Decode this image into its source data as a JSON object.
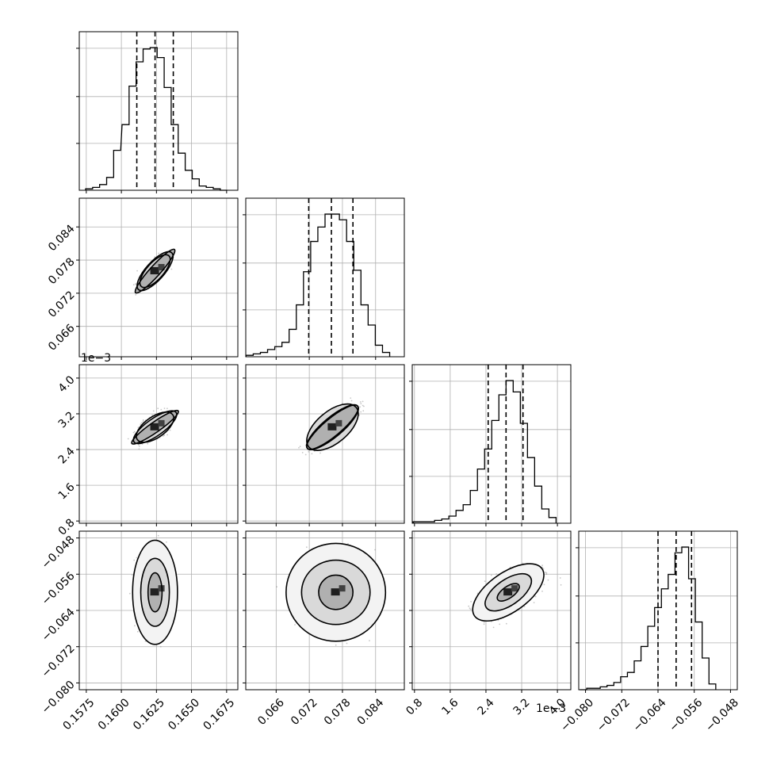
{
  "chart_data": {
    "type": "corner",
    "parameters": [
      {
        "range": [
          0.157,
          0.1683
        ],
        "ticks": [
          0.1575,
          0.16,
          0.1625,
          0.165,
          0.1675
        ],
        "tick_labels": [
          "0.1575",
          "0.1600",
          "0.1625",
          "0.1650",
          "0.1675"
        ],
        "offset": "",
        "quantiles": [
          0.1611,
          0.1624,
          0.1637
        ]
      },
      {
        "range": [
          0.0605,
          0.0892
        ],
        "ticks": [
          0.066,
          0.072,
          0.078,
          0.084
        ],
        "tick_labels": [
          "0.066",
          "0.072",
          "0.078",
          "0.084"
        ],
        "offset": "",
        "quantiles": [
          0.0719,
          0.076,
          0.0799
        ]
      },
      {
        "range": [
          0.00075,
          0.0043
        ],
        "ticks": [
          0.0008,
          0.0016,
          0.0024,
          0.0032,
          0.004
        ],
        "tick_labels": [
          "0.8",
          "1.6",
          "2.4",
          "3.2",
          "4.0"
        ],
        "offset": "1e−3",
        "quantiles": [
          0.00245,
          0.00285,
          0.00323
        ]
      },
      {
        "range": [
          -0.0815,
          -0.0465
        ],
        "ticks": [
          -0.08,
          -0.072,
          -0.064,
          -0.056,
          -0.048
        ],
        "tick_labels": [
          "−0.080",
          "−0.072",
          "−0.064",
          "−0.056",
          "−0.048"
        ],
        "offset": "",
        "quantiles": [
          -0.064,
          -0.06,
          -0.0566
        ]
      }
    ],
    "histograms": [
      {
        "x": [
          0.1577,
          0.1582,
          0.1587,
          0.1592,
          0.1597,
          0.1603,
          0.1608,
          0.1613,
          0.1618,
          0.1623,
          0.1628,
          0.1633,
          0.1638,
          0.1643,
          0.1648,
          0.1653,
          0.1658,
          0.1663,
          0.1668,
          0.1673
        ],
        "counts": [
          1,
          2,
          4,
          9,
          28,
          46,
          73,
          90,
          99,
          100,
          93,
          72,
          46,
          26,
          14,
          8,
          3,
          2,
          1,
          0
        ]
      },
      {
        "x": [
          0.0612,
          0.0625,
          0.0638,
          0.0651,
          0.0664,
          0.0677,
          0.069,
          0.0703,
          0.0716,
          0.0729,
          0.0742,
          0.0755,
          0.0768,
          0.0781,
          0.0794,
          0.0807,
          0.082,
          0.0833,
          0.0846,
          0.0859
        ],
        "counts": [
          1,
          2,
          3,
          5,
          7,
          10,
          19,
          36,
          59,
          80,
          90,
          99,
          99,
          95,
          80,
          60,
          36,
          22,
          8,
          3
        ]
      },
      {
        "x": [
          0.00085,
          0.00101,
          0.00117,
          0.00133,
          0.00149,
          0.00165,
          0.00181,
          0.00197,
          0.00213,
          0.00229,
          0.00245,
          0.00261,
          0.00277,
          0.00293,
          0.00309,
          0.00325,
          0.00341,
          0.00357,
          0.00373,
          0.00389
        ],
        "counts": [
          1,
          1,
          1,
          2,
          3,
          5,
          9,
          13,
          23,
          38,
          52,
          72,
          90,
          100,
          92,
          70,
          46,
          26,
          10,
          4
        ]
      },
      {
        "x": [
          -0.0805,
          -0.079,
          -0.0775,
          -0.076,
          -0.0745,
          -0.073,
          -0.0715,
          -0.07,
          -0.0685,
          -0.067,
          -0.0655,
          -0.064,
          -0.0625,
          -0.061,
          -0.0595,
          -0.058,
          -0.0565,
          -0.055,
          -0.0535,
          -0.052
        ],
        "counts": [
          0,
          1,
          1,
          2,
          3,
          5,
          9,
          12,
          20,
          30,
          44,
          57,
          70,
          80,
          95,
          99,
          77,
          47,
          22,
          4
        ]
      }
    ],
    "contour_pairs": [
      {
        "row": 1,
        "col": 0,
        "center": [
          0.1624,
          0.076
        ],
        "levels": [
          [
            0.00072,
            0.0087
          ],
          [
            0.00125,
            0.0058
          ],
          [
            0.0018,
            0.0029
          ]
        ],
        "angle_deg": 48
      },
      {
        "row": 2,
        "col": 0,
        "center": [
          0.1624,
          0.0029
        ],
        "levels": [
          [
            0.0007,
            0.00105
          ],
          [
            0.00118,
            0.00078
          ],
          [
            0.00165,
            0.00045
          ]
        ],
        "angle_deg": 35
      },
      {
        "row": 2,
        "col": 1,
        "center": [
          0.0762,
          0.0029
        ],
        "levels": [
          [
            0.003,
            0.0011
          ],
          [
            0.0055,
            0.0007
          ],
          [
            0.0085,
            0.00042
          ]
        ],
        "angle_deg": 40
      },
      {
        "row": 3,
        "col": 0,
        "center": [
          0.1624,
          -0.06
        ],
        "levels": [
          [
            0.0005,
            0.0043
          ],
          [
            0.00102,
            0.0075
          ],
          [
            0.0016,
            0.0115
          ]
        ],
        "angle_deg": 0
      },
      {
        "row": 3,
        "col": 1,
        "center": [
          0.0768,
          -0.06
        ],
        "levels": [
          [
            0.0031,
            0.0038
          ],
          [
            0.0062,
            0.0071
          ],
          [
            0.009,
            0.0108
          ]
        ],
        "angle_deg": 0
      },
      {
        "row": 3,
        "col": 2,
        "center": [
          0.0029,
          -0.06
        ],
        "levels": [
          [
            0.00025,
            0.0032
          ],
          [
            0.00055,
            0.0064
          ],
          [
            0.00085,
            0.0098
          ]
        ],
        "angle_deg": 35
      }
    ]
  }
}
